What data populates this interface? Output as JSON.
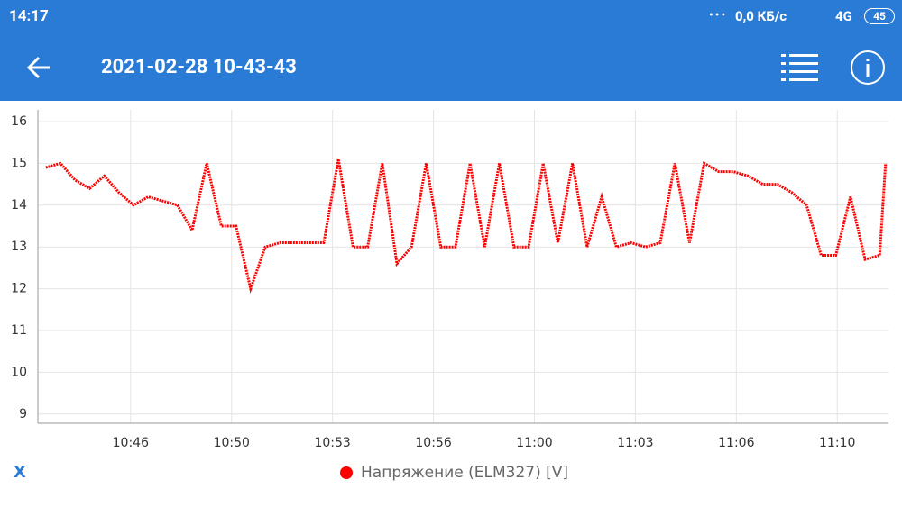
{
  "status_bar": {
    "time": "14:17",
    "network_speed": "0,0 КБ/с",
    "network": "4G",
    "battery": "45"
  },
  "header": {
    "title": "2021-02-28 10-43-43"
  },
  "chart_data": {
    "type": "line",
    "xlabel": "X",
    "x": [
      643.4,
      643.9,
      644.4,
      644.9,
      645.4,
      645.9,
      646.4,
      646.9,
      647.4,
      647.9,
      648.4,
      648.9,
      649.4,
      649.9,
      650.4,
      650.9,
      651.4,
      651.9,
      652.4,
      652.9,
      653.4,
      653.9,
      654.4,
      654.9,
      655.4,
      655.9,
      656.4,
      656.9,
      657.4,
      657.9,
      658.4,
      658.9,
      659.4,
      659.9,
      660.4,
      660.9,
      661.4,
      661.9,
      662.4,
      662.9,
      663.4,
      663.9,
      664.4,
      664.9,
      665.4,
      665.9,
      666.4,
      666.9,
      667.4,
      667.9,
      668.4,
      668.9,
      669.4,
      669.9,
      670.4,
      670.9,
      671.4,
      671.9,
      672.1
    ],
    "series": [
      {
        "name": "Напряжение (ELM327) [V]",
        "color": "#ff0000",
        "values": [
          14.9,
          15.0,
          14.6,
          14.4,
          14.7,
          14.3,
          14.0,
          14.2,
          14.1,
          14.0,
          13.4,
          15.0,
          13.5,
          13.5,
          12.0,
          13.0,
          13.1,
          13.1,
          13.1,
          13.1,
          15.1,
          13.0,
          13.0,
          15.0,
          12.6,
          13.0,
          15.0,
          13.0,
          13.0,
          15.0,
          13.0,
          15.0,
          13.0,
          13.0,
          15.0,
          13.1,
          15.0,
          13.0,
          14.2,
          13.0,
          13.1,
          13.0,
          13.1,
          15.0,
          13.1,
          15.0,
          14.8,
          14.8,
          14.7,
          14.5,
          14.5,
          14.3,
          14.0,
          12.8,
          12.8,
          14.2,
          12.7,
          12.8,
          15.0
        ]
      }
    ],
    "xlim": [
      643.13,
      672.2
    ],
    "xticks": [
      {
        "value": 646.3,
        "label": "10:46"
      },
      {
        "value": 649.75,
        "label": "10:50"
      },
      {
        "value": 653.2,
        "label": "10:53"
      },
      {
        "value": 656.65,
        "label": "10:56"
      },
      {
        "value": 660.1,
        "label": "11:00"
      },
      {
        "value": 663.55,
        "label": "11:03"
      },
      {
        "value": 667.0,
        "label": "11:06"
      },
      {
        "value": 670.45,
        "label": "11:10"
      }
    ],
    "ylim": [
      8.78,
      16.28
    ],
    "yticks": [
      9,
      10,
      11,
      12,
      13,
      14,
      15,
      16
    ],
    "grid": true
  }
}
